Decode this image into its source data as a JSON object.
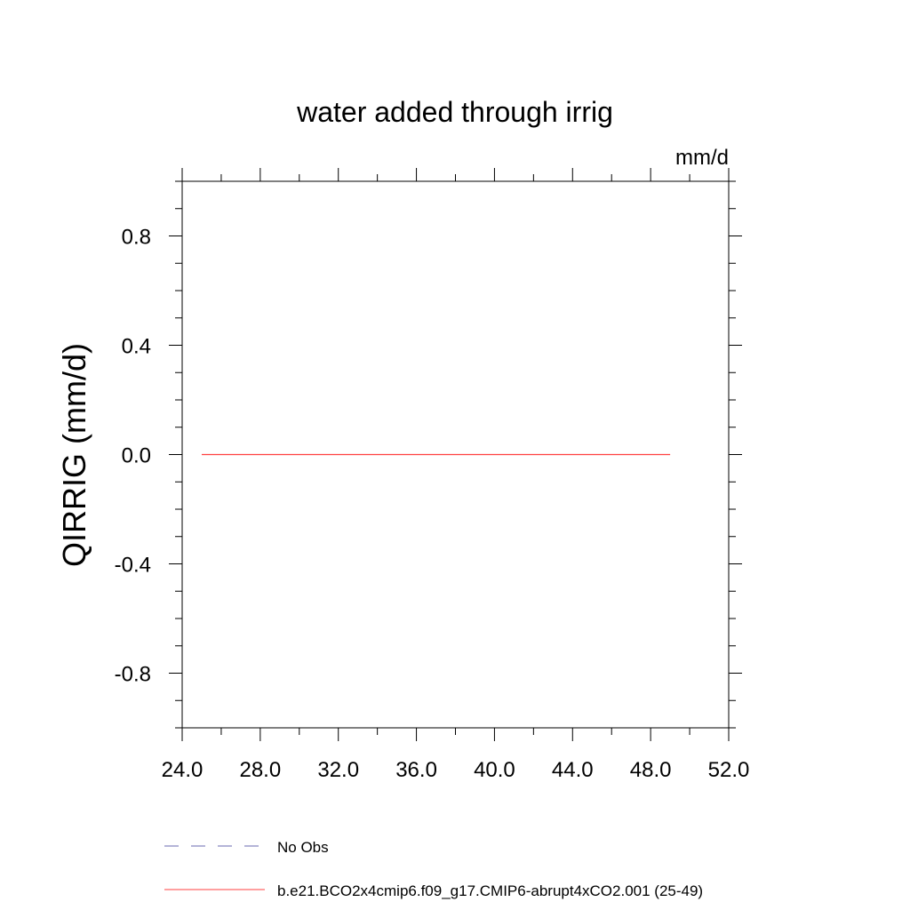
{
  "chart_data": {
    "type": "line",
    "title": "water added through irrig",
    "units": "mm/d",
    "ylabel": "QIRRIG  (mm/d)",
    "xlabel": "",
    "xlim": [
      24,
      52
    ],
    "ylim": [
      -1,
      1
    ],
    "x_ticks": [
      24,
      28,
      32,
      36,
      40,
      44,
      48,
      52
    ],
    "x_tick_labels": [
      "24.0",
      "28.0",
      "32.0",
      "36.0",
      "40.0",
      "44.0",
      "48.0",
      "52.0"
    ],
    "y_ticks": [
      -0.8,
      -0.4,
      0.0,
      0.4,
      0.8
    ],
    "y_tick_labels": [
      "-0.8",
      "-0.4",
      "0.0",
      "0.4",
      "0.8"
    ],
    "grid": false,
    "legend_position": "bottom",
    "series": [
      {
        "name": "No Obs",
        "color": "#6a6ab0",
        "style": "dashed",
        "x": [],
        "y": []
      },
      {
        "name": "b.e21.BCO2x4cmip6.f09_g17.CMIP6-abrupt4xCO2.001 (25-49)",
        "color": "#ff4040",
        "style": "solid",
        "x": [
          25,
          49
        ],
        "y": [
          0.0,
          0.0
        ]
      }
    ]
  }
}
